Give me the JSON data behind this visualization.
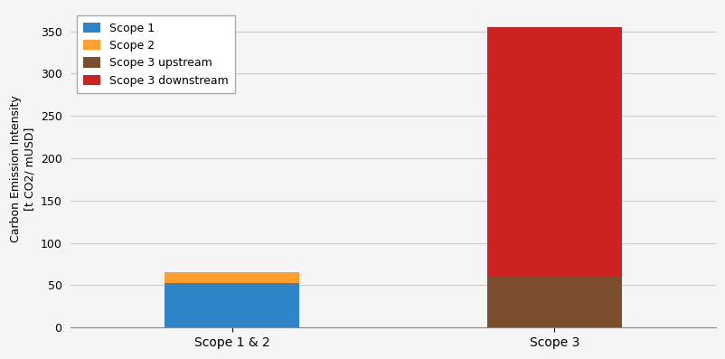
{
  "categories": [
    "Scope 1 & 2",
    "Scope 3"
  ],
  "scope1_val": 52,
  "scope2_val": 13,
  "scope3_upstream_val": 60,
  "scope3_downstream_val": 295,
  "colors": {
    "scope1": "#2e86c8",
    "scope2": "#ff9f2e",
    "scope3_upstream": "#7b4f2e",
    "scope3_downstream": "#cc2222"
  },
  "legend_labels": [
    "Scope 1",
    "Scope 2",
    "Scope 3 upstream",
    "Scope 3 downstream"
  ],
  "ylabel_line1": "Carbon Emission Intensity",
  "ylabel_line2": "[t CO2/ mUSD]",
  "ylim": [
    0,
    375
  ],
  "yticks": [
    0,
    50,
    100,
    150,
    200,
    250,
    300,
    350
  ],
  "bar_width": 0.25,
  "background_color": "#f5f5f5",
  "grid_color": "#cccccc",
  "x_positions": [
    0.3,
    0.9
  ],
  "xlim": [
    0.0,
    1.2
  ]
}
